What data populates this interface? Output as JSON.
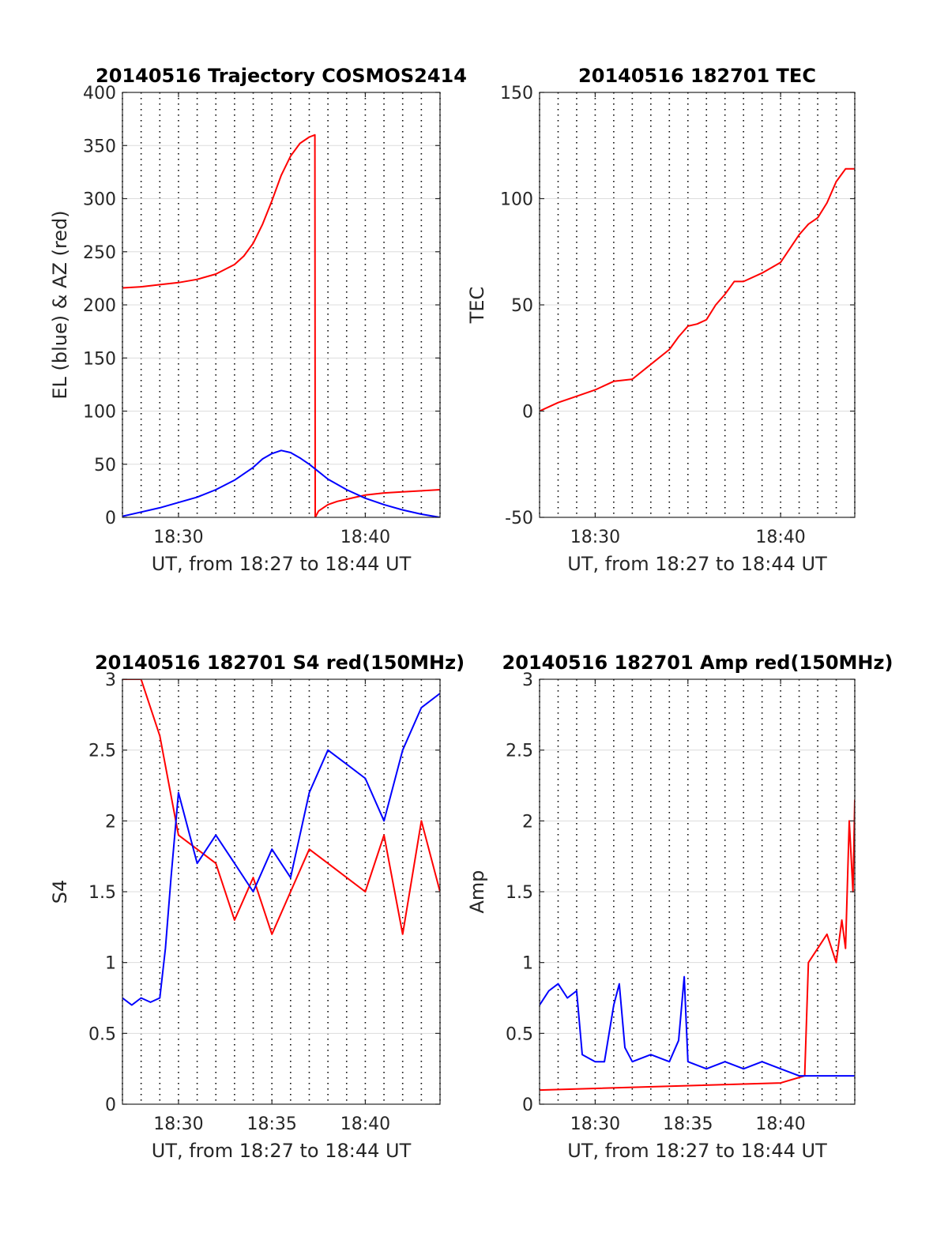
{
  "chart_data": [
    {
      "type": "line",
      "title": "20140516 Trajectory COSMOS2414",
      "xlabel": "UT, from 18:27 to 18:44 UT",
      "ylabel": "EL (blue) & AZ (red)",
      "xlim": [
        27,
        44
      ],
      "ylim": [
        0,
        400
      ],
      "yticks": [
        0,
        50,
        100,
        150,
        200,
        250,
        300,
        350,
        400
      ],
      "xtick_values": [
        30,
        40
      ],
      "xtick_labels": [
        "18:30",
        "18:40"
      ],
      "grid": true,
      "series": [
        {
          "color": "#ff0000",
          "x": [
            27,
            28,
            29,
            30,
            31,
            32,
            33,
            33.5,
            34,
            34.5,
            35,
            35.5,
            36,
            36.5,
            37.0,
            37.3,
            37.32,
            37.5,
            38,
            38.5,
            39,
            39.5,
            40,
            41,
            42,
            43,
            44
          ],
          "y": [
            216,
            217,
            219,
            221,
            224,
            229,
            238,
            246,
            258,
            276,
            298,
            322,
            340,
            352,
            358,
            360,
            0,
            6,
            12,
            15,
            17,
            19,
            21,
            23,
            24,
            25,
            26
          ]
        },
        {
          "color": "#0000ff",
          "x": [
            27,
            28,
            29,
            30,
            31,
            32,
            33,
            34,
            34.5,
            35,
            35.5,
            36,
            36.5,
            37,
            37.5,
            38,
            39,
            40,
            41,
            42,
            43,
            44
          ],
          "y": [
            1,
            5,
            9,
            14,
            19,
            26,
            35,
            47,
            55,
            60,
            63,
            61,
            56,
            50,
            43,
            36,
            26,
            18,
            12,
            7,
            3,
            0
          ]
        }
      ]
    },
    {
      "type": "line",
      "title": "20140516 182701 TEC",
      "xlabel": "UT, from 18:27 to 18:44 UT",
      "ylabel": "TEC",
      "xlim": [
        27,
        44
      ],
      "ylim": [
        -50,
        150
      ],
      "yticks": [
        -50,
        0,
        50,
        100,
        150
      ],
      "xtick_values": [
        30,
        40
      ],
      "xtick_labels": [
        "18:30",
        "18:40"
      ],
      "grid": true,
      "series": [
        {
          "color": "#ff0000",
          "x": [
            27,
            28,
            29,
            30,
            31,
            32,
            33,
            34,
            34.5,
            35,
            35.5,
            36,
            36.5,
            37,
            37.5,
            38,
            39,
            40,
            41,
            41.5,
            42,
            42.5,
            43,
            43.5,
            44
          ],
          "y": [
            0,
            4,
            7,
            10,
            14,
            15,
            22,
            29,
            35,
            40,
            41,
            43,
            50,
            55,
            61,
            61,
            65,
            70,
            83,
            88,
            91,
            98,
            108,
            114,
            114
          ]
        }
      ]
    },
    {
      "type": "line",
      "title": "20140516 182701 S4 red(150MHz)",
      "xlabel": "UT, from 18:27 to 18:44 UT",
      "ylabel": "S4",
      "xlim": [
        27,
        44
      ],
      "ylim": [
        0,
        3
      ],
      "yticks": [
        0,
        0.5,
        1,
        1.5,
        2,
        2.5,
        3
      ],
      "xtick_values": [
        30,
        35,
        40
      ],
      "xtick_labels": [
        "18:30",
        "18:35",
        "18:40"
      ],
      "grid": true,
      "series": [
        {
          "color": "#ff0000",
          "x": [
            27,
            28,
            29,
            30,
            31,
            32,
            33,
            34,
            35,
            36,
            37,
            38,
            39,
            40,
            41,
            42,
            43,
            44
          ],
          "y": [
            3,
            3,
            2.6,
            1.9,
            1.8,
            1.7,
            1.3,
            1.6,
            1.2,
            1.5,
            1.8,
            1.7,
            1.6,
            1.5,
            1.9,
            1.2,
            2.0,
            1.5
          ]
        },
        {
          "color": "#0000ff",
          "x": [
            27,
            27.5,
            28,
            28.5,
            29,
            29.3,
            29.6,
            30,
            31,
            32,
            33,
            34,
            35,
            36,
            37,
            38,
            39,
            40,
            41,
            42,
            43,
            44
          ],
          "y": [
            0.75,
            0.7,
            0.75,
            0.72,
            0.75,
            1.1,
            1.6,
            2.2,
            1.7,
            1.9,
            1.7,
            1.5,
            1.8,
            1.6,
            2.2,
            2.5,
            2.4,
            2.3,
            2.0,
            2.5,
            2.8,
            2.9
          ]
        }
      ]
    },
    {
      "type": "line",
      "title": "20140516 182701 Amp red(150MHz)",
      "xlabel": "UT, from 18:27 to 18:44 UT",
      "ylabel": "Amp",
      "xlim": [
        27,
        44
      ],
      "ylim": [
        0,
        3
      ],
      "yticks": [
        0,
        0.5,
        1,
        1.5,
        2,
        2.5,
        3
      ],
      "xtick_values": [
        30,
        35,
        40
      ],
      "xtick_labels": [
        "18:30",
        "18:35",
        "18:40"
      ],
      "grid": true,
      "series": [
        {
          "color": "#ff0000",
          "x": [
            27,
            40,
            41.3,
            41.5,
            42,
            42.5,
            43,
            43.3,
            43.5,
            43.7,
            43.9,
            44
          ],
          "y": [
            0.1,
            0.15,
            0.2,
            1.0,
            1.1,
            1.2,
            1.0,
            1.3,
            1.1,
            2.0,
            1.5,
            2.15
          ]
        },
        {
          "color": "#0000ff",
          "x": [
            27,
            27.5,
            28,
            28.5,
            29,
            29.3,
            30,
            30.5,
            31,
            31.3,
            31.6,
            32,
            33,
            34,
            34.5,
            34.8,
            35,
            36,
            37,
            38,
            39,
            40,
            41,
            42,
            43,
            44
          ],
          "y": [
            0.7,
            0.8,
            0.85,
            0.75,
            0.8,
            0.35,
            0.3,
            0.3,
            0.7,
            0.85,
            0.4,
            0.3,
            0.35,
            0.3,
            0.45,
            0.9,
            0.3,
            0.25,
            0.3,
            0.25,
            0.3,
            0.25,
            0.2,
            0.2,
            0.2,
            0.2
          ]
        }
      ]
    }
  ]
}
